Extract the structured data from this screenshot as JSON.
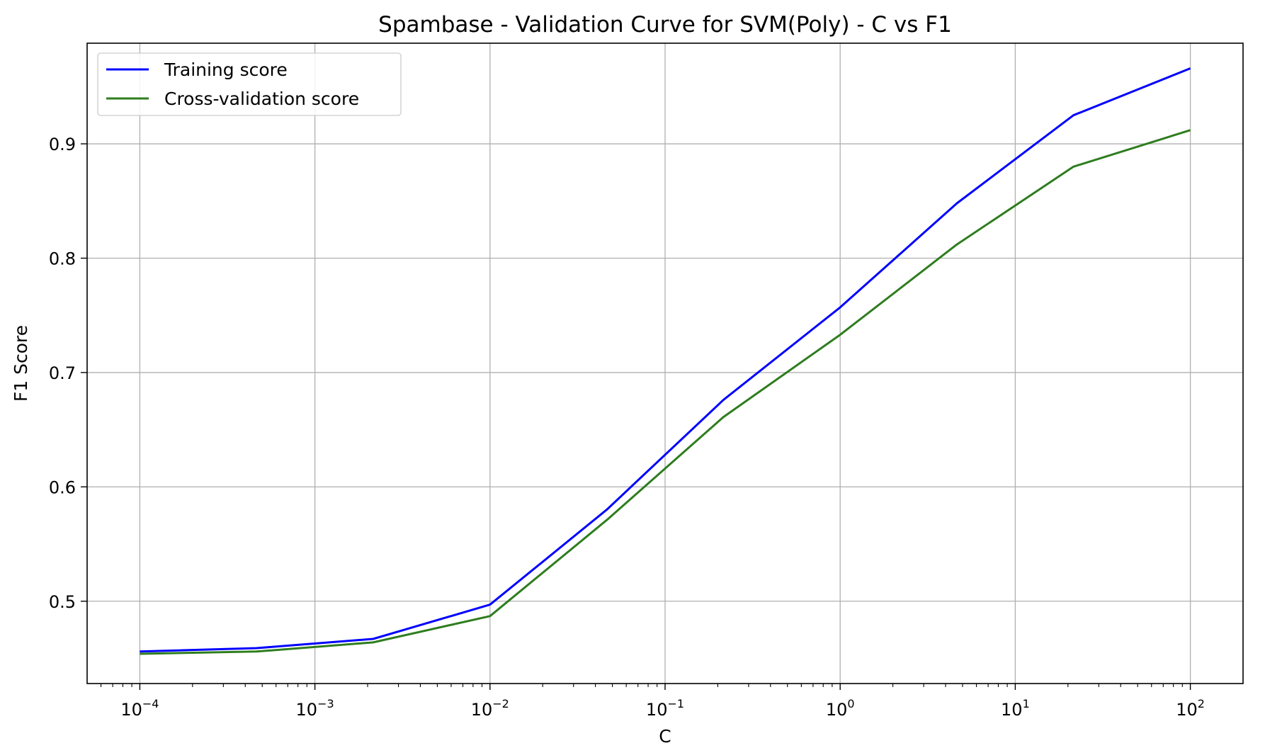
{
  "chart_data": {
    "type": "line",
    "title": "Spambase - Validation Curve for SVM(Poly) - C vs F1",
    "xlabel": "C",
    "ylabel": "F1 Score",
    "x_scale": "log",
    "xlim": [
      5e-05,
      200
    ],
    "ylim": [
      0.428,
      0.988
    ],
    "grid": true,
    "legend_position": "top-left",
    "x_ticks": [
      {
        "value": 0.0001,
        "base": "10",
        "exp": "−4"
      },
      {
        "value": 0.001,
        "base": "10",
        "exp": "−3"
      },
      {
        "value": 0.01,
        "base": "10",
        "exp": "−2"
      },
      {
        "value": 0.1,
        "base": "10",
        "exp": "−1"
      },
      {
        "value": 1,
        "base": "10",
        "exp": "0"
      },
      {
        "value": 10,
        "base": "10",
        "exp": "1"
      },
      {
        "value": 100,
        "base": "10",
        "exp": "2"
      }
    ],
    "y_ticks": [
      {
        "value": 0.5,
        "label": "0.5"
      },
      {
        "value": 0.6,
        "label": "0.6"
      },
      {
        "value": 0.7,
        "label": "0.7"
      },
      {
        "value": 0.8,
        "label": "0.8"
      },
      {
        "value": 0.9,
        "label": "0.9"
      }
    ],
    "x": [
      0.0001,
      0.000464,
      0.00215,
      0.01,
      0.0464,
      0.215,
      1,
      4.64,
      21.5,
      100
    ],
    "series": [
      {
        "name": "Training score",
        "color": "#0000ff",
        "values": [
          0.456,
          0.459,
          0.467,
          0.497,
          0.58,
          0.676,
          0.757,
          0.848,
          0.925,
          0.966
        ]
      },
      {
        "name": "Cross-validation score",
        "color": "#2e7d1e",
        "values": [
          0.454,
          0.456,
          0.464,
          0.487,
          0.571,
          0.661,
          0.733,
          0.812,
          0.88,
          0.912
        ]
      }
    ]
  }
}
